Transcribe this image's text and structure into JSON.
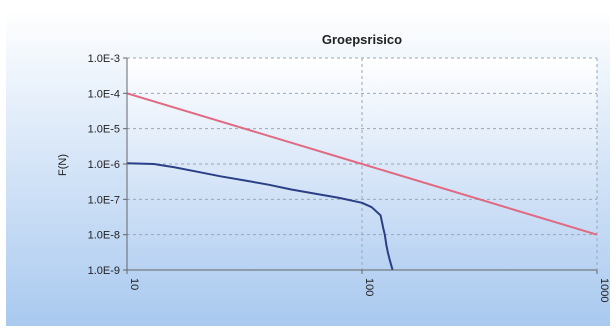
{
  "chart_data": {
    "type": "line",
    "title": "Groepsrisico",
    "xlabel": "",
    "ylabel": "F(N)",
    "x_scale": "log",
    "y_scale": "log",
    "xlim": [
      10,
      1000
    ],
    "ylim": [
      1e-09,
      0.001
    ],
    "x_tick_labels": [
      "10",
      "100",
      "1000"
    ],
    "x_tick_values": [
      10,
      100,
      1000
    ],
    "y_tick_labels": [
      "1.0E-3",
      "1.0E-4",
      "1.0E-5",
      "1.0E-6",
      "1.0E-7",
      "1.0E-8",
      "1.0E-9"
    ],
    "y_tick_values": [
      0.001,
      0.0001,
      1e-05,
      1e-06,
      1e-07,
      1e-08,
      1e-09
    ],
    "grid": true,
    "colors": {
      "background_top": "#ffffff",
      "background_bottom": "#a9c9ef",
      "plot_top": "#ffffff",
      "plot_bottom": "#b8d2f2",
      "grid": "#9aa6b8",
      "axis": "#666666",
      "text": "#222222"
    },
    "series": [
      {
        "color": "#e06a82",
        "x": [
          10,
          100,
          1000
        ],
        "y": [
          0.0001,
          1e-06,
          1e-08
        ]
      },
      {
        "color": "#2b3f86",
        "x": [
          10,
          13,
          16,
          20,
          25,
          32,
          40,
          50,
          63,
          80,
          100,
          110,
          120,
          123,
          125,
          127,
          129,
          131,
          133,
          135
        ],
        "y": [
          1.05e-06,
          1e-06,
          8e-07,
          6e-07,
          4.5e-07,
          3.4e-07,
          2.6e-07,
          1.9e-07,
          1.45e-07,
          1.1e-07,
          8e-08,
          6e-08,
          3.5e-08,
          1.6e-08,
          1e-08,
          5e-09,
          3e-09,
          2e-09,
          1.4e-09,
          1e-09
        ]
      }
    ]
  }
}
